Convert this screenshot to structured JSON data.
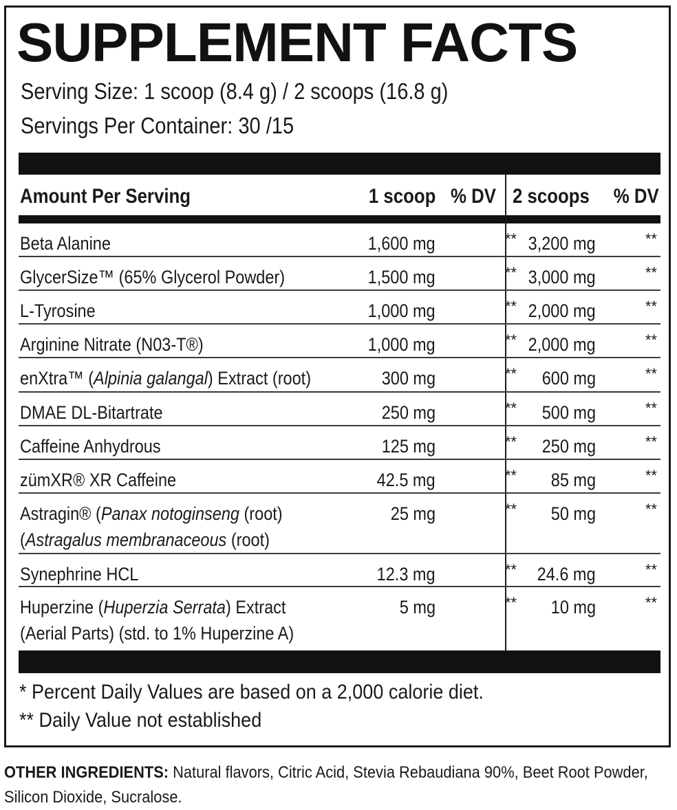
{
  "title": "SUPPLEMENT FACTS",
  "serving_size": "Serving Size: 1 scoop (8.4 g) / 2 scoops (16.8 g)",
  "servings_per_container": "Servings Per Container: 30 /15",
  "header": {
    "amount": "Amount Per Serving",
    "col1": "1 scoop",
    "dv1": "% DV",
    "col2": "2 scoops",
    "dv2": "% DV"
  },
  "rows": [
    {
      "name": "Beta Alanine",
      "v1": "1,600 mg",
      "d1": "**",
      "v2": "3,200 mg",
      "d2": "**"
    },
    {
      "name": "GlycerSize™ (65% Glycerol Powder)",
      "v1": "1,500 mg",
      "d1": "**",
      "v2": "3,000 mg",
      "d2": "**"
    },
    {
      "name": "L-Tyrosine",
      "v1": "1,000 mg",
      "d1": "**",
      "v2": "2,000 mg",
      "d2": "**"
    },
    {
      "name": "Arginine Nitrate (N03-T®)",
      "v1": "1,000 mg",
      "d1": "**",
      "v2": "2,000 mg",
      "d2": "**"
    },
    {
      "name_a": "enXtra™ (",
      "name_i": "Alpinia galangal",
      "name_b": ") Extract (root)",
      "v1": "300 mg",
      "d1": "**",
      "v2": "600 mg",
      "d2": "**"
    },
    {
      "name": "DMAE DL-Bitartrate",
      "v1": "250 mg",
      "d1": "**",
      "v2": "500 mg",
      "d2": "**"
    },
    {
      "name": "Caffeine Anhydrous",
      "v1": "125 mg",
      "d1": "**",
      "v2": "250 mg",
      "d2": "**"
    },
    {
      "name": "zümXR® XR Caffeine",
      "v1": "42.5 mg",
      "d1": "**",
      "v2": "85 mg",
      "d2": "**"
    },
    {
      "l1a": "Astragin® (",
      "l1i": "Panax notoginseng",
      "l1b": " (root)",
      "l2a": "(",
      "l2i": "Astragalus membranaceous",
      "l2b": " (root)",
      "v1": "25 mg",
      "d1": "**",
      "v2": "50 mg",
      "d2": "**"
    },
    {
      "name": "Synephrine HCL",
      "v1": "12.3 mg",
      "d1": "**",
      "v2": "24.6 mg",
      "d2": "**"
    },
    {
      "l1a": "Huperzine (",
      "l1i": "Huperzia Serrata",
      "l1b": ") Extract",
      "l2a": "(Aerial Parts) (std. to 1% Huperzine A)",
      "v1": "5 mg",
      "d1": "**",
      "v2": "10 mg",
      "d2": "**"
    }
  ],
  "footnotes": {
    "percent_dv": "* Percent Daily Values are based on a 2,000 calorie diet.",
    "not_established": "** Daily Value not established"
  },
  "other_ingredients": {
    "label": "OTHER INGREDIENTS:",
    "text": " Natural flavors, Citric Acid, Stevia Rebaudiana 90%, Beet Root Powder, Silicon Dioxide, Sucralose."
  }
}
